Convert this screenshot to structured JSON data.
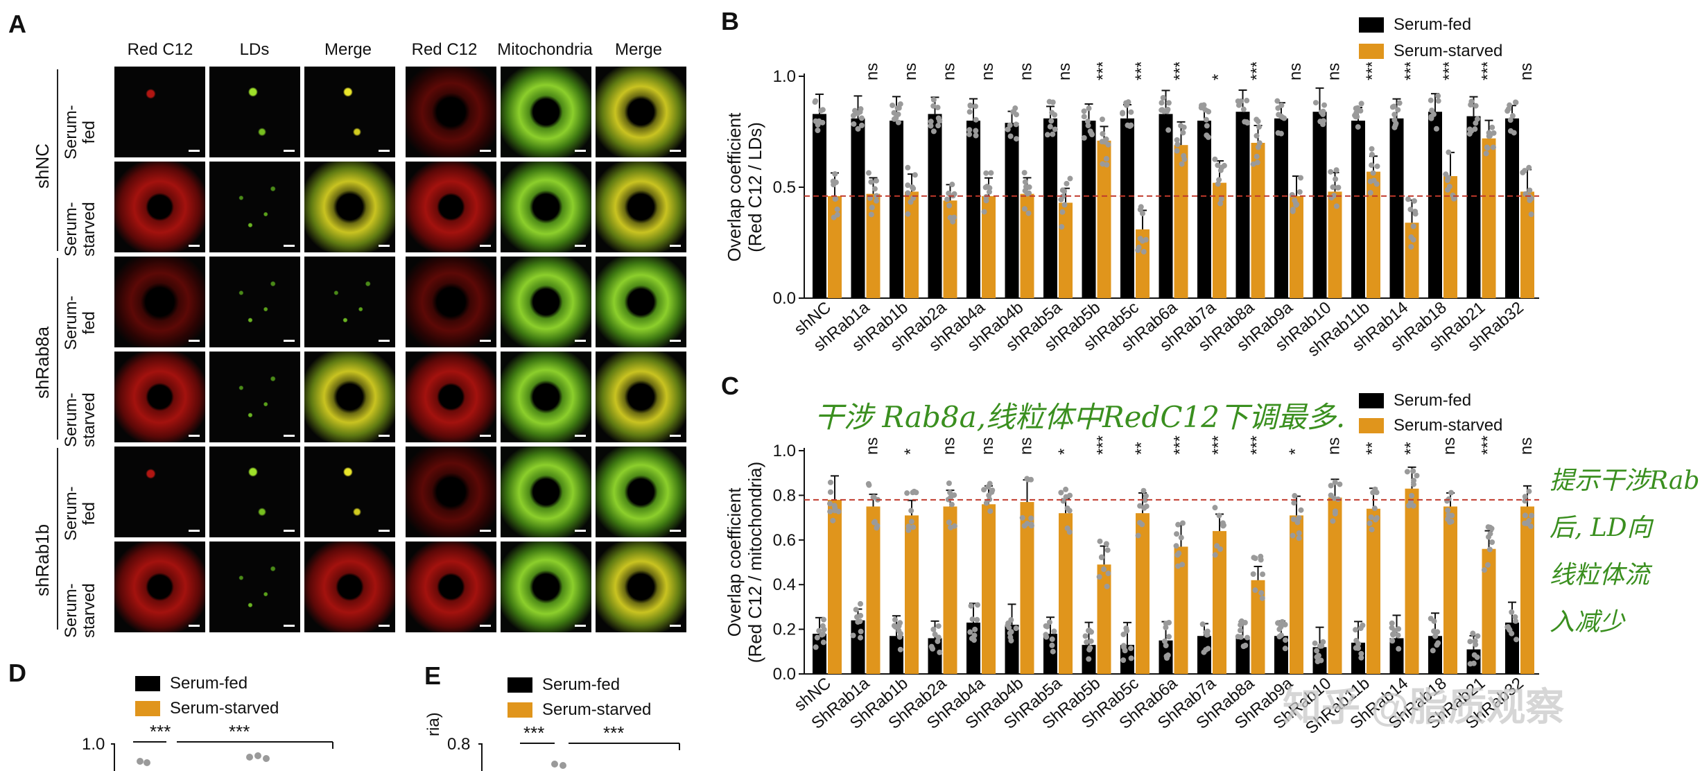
{
  "panel_labels": {
    "a": "A",
    "b": "B",
    "c": "C",
    "d": "D",
    "e": "E"
  },
  "panel_a": {
    "headers": [
      "Red C12",
      "LDs",
      "Merge",
      "Red C12",
      "Mitochondria",
      "Merge"
    ],
    "groups": [
      "shNC",
      "shRab8a",
      "shRab1b"
    ],
    "conditions": [
      "Serum-\nfed",
      "Serum-\nstarved"
    ]
  },
  "legend": {
    "fed": "Serum-fed",
    "starved": "Serum-starved"
  },
  "colors": {
    "fed": "#000000",
    "starved": "#e0951c",
    "dots": "#9a9a9a",
    "refline": "#c0392b",
    "note": "#3a8f1f"
  },
  "chart_data": [
    {
      "panel": "B",
      "type": "bar",
      "ylabel_line1": "Overlap coefficient",
      "ylabel_line2": "(Red C12 / LDs)",
      "ylim": [
        0,
        1.0
      ],
      "yticks": [
        "0.0",
        "0.5",
        "1.0"
      ],
      "reference_line": 0.46,
      "categories": [
        "shNC",
        "shRab1a",
        "shRab1b",
        "shRab2a",
        "shRab4a",
        "shRab4b",
        "shRab5a",
        "shRab5b",
        "shRab5c",
        "shRab6a",
        "shRab7a",
        "shRab8a",
        "shRab9a",
        "shRab10",
        "shRab11b",
        "shRab14",
        "shRab18",
        "shRab21",
        "shRab32"
      ],
      "series": [
        {
          "name": "Serum-fed",
          "values": [
            0.83,
            0.81,
            0.8,
            0.83,
            0.8,
            0.79,
            0.81,
            0.8,
            0.81,
            0.83,
            0.8,
            0.84,
            0.81,
            0.84,
            0.8,
            0.81,
            0.84,
            0.82,
            0.81
          ]
        },
        {
          "name": "Serum-starved",
          "values": [
            0.46,
            0.47,
            0.48,
            0.44,
            0.46,
            0.47,
            0.43,
            0.71,
            0.31,
            0.69,
            0.52,
            0.7,
            0.46,
            0.48,
            0.57,
            0.34,
            0.55,
            0.72,
            0.48
          ]
        }
      ],
      "significance": [
        "",
        "ns",
        "ns",
        "ns",
        "ns",
        "ns",
        "ns",
        "***",
        "***",
        "***",
        "*",
        "***",
        "ns",
        "ns",
        "***",
        "***",
        "***",
        "***",
        "ns"
      ]
    },
    {
      "panel": "C",
      "type": "bar",
      "ylabel_line1": "Overlap coefficient",
      "ylabel_line2": "(Red C12 / mitochondria)",
      "ylim": [
        0,
        1.0
      ],
      "yticks": [
        "0.0",
        "0.2",
        "0.4",
        "0.6",
        "0.8",
        "1.0"
      ],
      "reference_line": 0.78,
      "categories": [
        "shNC",
        "ShRab1a",
        "ShRab1b",
        "ShRab2a",
        "ShRab4a",
        "ShRab4b",
        "ShRab5a",
        "ShRab5b",
        "ShRab5c",
        "ShRab6a",
        "ShRab7a",
        "ShRab8a",
        "ShRab9a",
        "ShRab10",
        "ShRab11b",
        "ShRab14",
        "ShRab18",
        "ShRab21",
        "ShRab32"
      ],
      "series": [
        {
          "name": "Serum-fed",
          "values": [
            0.18,
            0.24,
            0.17,
            0.16,
            0.23,
            0.22,
            0.18,
            0.13,
            0.13,
            0.15,
            0.17,
            0.16,
            0.17,
            0.12,
            0.14,
            0.16,
            0.17,
            0.11,
            0.23
          ]
        },
        {
          "name": "Serum-starved",
          "values": [
            0.78,
            0.75,
            0.71,
            0.75,
            0.76,
            0.77,
            0.72,
            0.49,
            0.72,
            0.57,
            0.64,
            0.42,
            0.71,
            0.79,
            0.74,
            0.83,
            0.75,
            0.56,
            0.75
          ]
        }
      ],
      "significance": [
        "",
        "ns",
        "*",
        "ns",
        "ns",
        "ns",
        "*",
        "***",
        "**",
        "***",
        "***",
        "***",
        "*",
        "ns",
        "**",
        "**",
        "ns",
        "***",
        "ns"
      ]
    }
  ],
  "panel_d": {
    "sig1": "***",
    "sig2": "***",
    "ytick": "1.0"
  },
  "panel_e": {
    "sig1": "***",
    "sig2": "***",
    "ytick": "0.8",
    "ylabel_fragment": "ria)"
  },
  "annotations": {
    "note_top": "干涉 Rab8a,线粒体中RedC12下调最多.",
    "note_side": [
      "提示干涉Rab",
      "后, LD向",
      "线粒体流",
      "入减少"
    ]
  },
  "watermark": "知乎 @脂质观察"
}
